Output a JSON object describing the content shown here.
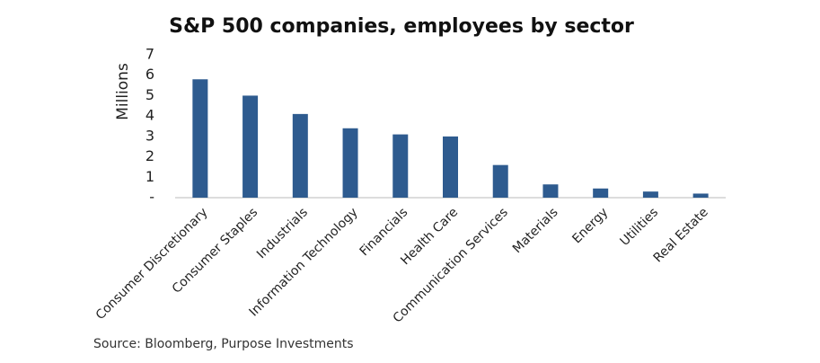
{
  "chart_data": {
    "type": "bar",
    "title": "S&P 500 companies, employees by sector",
    "y_label": "Millions",
    "source": "Source: Bloomberg, Purpose Investments",
    "categories": [
      "Consumer Discretionary",
      "Consumer Staples",
      "Industrials",
      "Information Technology",
      "Financials",
      "Health Care",
      "Communication Services",
      "Materials",
      "Energy",
      "Utilities",
      "Real Estate"
    ],
    "values": [
      5.8,
      5.0,
      4.1,
      3.4,
      3.1,
      3.0,
      1.6,
      0.65,
      0.45,
      0.3,
      0.2
    ],
    "color": "#2e5b8f",
    "ylim": [
      0,
      7
    ],
    "yticks": [
      {
        "value": 0,
        "label": "-"
      },
      1,
      2,
      3,
      4,
      5,
      6,
      7
    ],
    "grid": false
  }
}
